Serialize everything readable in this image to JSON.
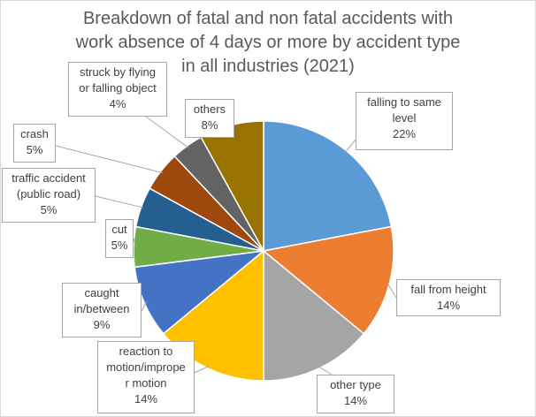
{
  "chart_data": {
    "type": "pie",
    "title_lines": [
      "Breakdown of fatal and non fatal accidents with",
      "work absence of 4 days or more by accident type",
      "in all industries (2021)"
    ],
    "slices": [
      {
        "label_lines": [
          "falling to same",
          "level"
        ],
        "value": 22,
        "value_text": "22%",
        "color": "#5b9bd5"
      },
      {
        "label_lines": [
          "fall from height"
        ],
        "value": 14,
        "value_text": "14%",
        "color": "#ed7d31"
      },
      {
        "label_lines": [
          "other type"
        ],
        "value": 14,
        "value_text": "14%",
        "color": "#a5a5a5"
      },
      {
        "label_lines": [
          "reaction to",
          "motion/imprope",
          "r motion"
        ],
        "value": 14,
        "value_text": "14%",
        "color": "#ffc000"
      },
      {
        "label_lines": [
          "caught",
          "in/between"
        ],
        "value": 9,
        "value_text": "9%",
        "color": "#4472c4"
      },
      {
        "label_lines": [
          "cut"
        ],
        "value": 5,
        "value_text": "5%",
        "color": "#70ad47"
      },
      {
        "label_lines": [
          "traffic accident",
          "(public road)"
        ],
        "value": 5,
        "value_text": "5%",
        "color": "#255e91"
      },
      {
        "label_lines": [
          "crash"
        ],
        "value": 5,
        "value_text": "5%",
        "color": "#9e480e"
      },
      {
        "label_lines": [
          "struck by flying",
          "or falling object"
        ],
        "value": 4,
        "value_text": "4%",
        "color": "#636363"
      },
      {
        "label_lines": [
          "others"
        ],
        "value": 8,
        "value_text": "8%",
        "color": "#997300"
      }
    ],
    "legend": "none",
    "data_labels": "callouts"
  }
}
